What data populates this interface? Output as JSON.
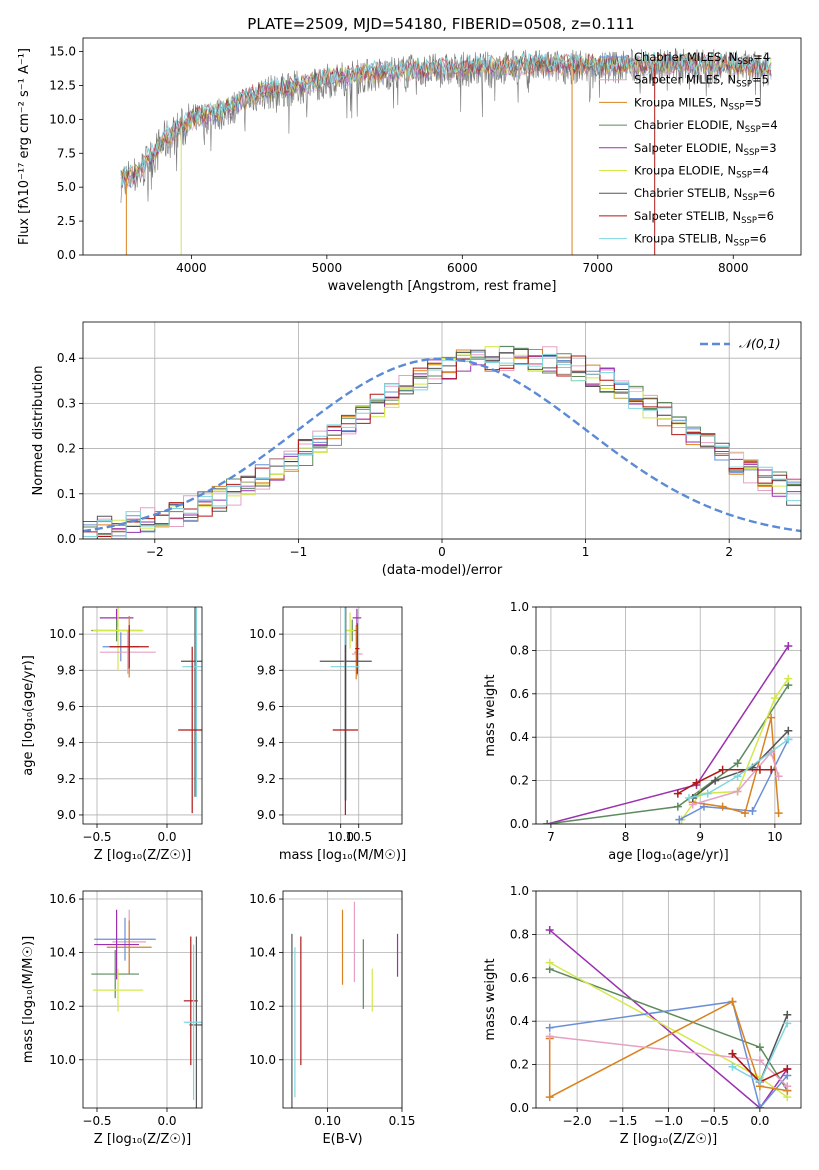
{
  "figure": {
    "title": "PLATE=2509, MJD=54180, FIBERID=0508, z=0.111"
  },
  "colors": {
    "Chabrier MILES": "#6b8fd6",
    "Salpeter MILES": "#e6a0c4",
    "Kroupa MILES": "#d9821f",
    "Chabrier ELODIE": "#5e8a5e",
    "Salpeter ELODIE": "#9b30b0",
    "Kroupa ELODIE": "#d4e84a",
    "Chabrier STELIB": "#555555",
    "Salpeter STELIB": "#b01818",
    "Kroupa STELIB": "#7fd6e0",
    "data": "#777777",
    "normal": "#5b8ad6"
  },
  "chart_data": [
    {
      "id": "spectrum",
      "type": "line",
      "xlabel": "wavelength [Angstrom, rest frame]",
      "ylabel": "Flux [f$_\\lambda$10$^{-17}$ erg cm$^{-2}$ s$^{-1}$ A$^{-1}$]",
      "ylabel_text": "Flux [fλ10⁻¹⁷ erg cm⁻² s⁻¹ A⁻¹]",
      "xlim": [
        3200,
        8500
      ],
      "ylim": [
        0,
        16
      ],
      "xticks": [
        4000,
        5000,
        6000,
        7000,
        8000
      ],
      "yticks": [
        "0.0",
        "2.5",
        "5.0",
        "7.5",
        "10.0",
        "12.5",
        "15.0"
      ],
      "legend_position": "right",
      "legend": [
        {
          "name": "Chabrier MILES",
          "nssp": "4"
        },
        {
          "name": "Salpeter MILES",
          "nssp": "5"
        },
        {
          "name": "Kroupa MILES",
          "nssp": "5"
        },
        {
          "name": "Chabrier ELODIE",
          "nssp": "4"
        },
        {
          "name": "Salpeter ELODIE",
          "nssp": "3"
        },
        {
          "name": "Kroupa ELODIE",
          "nssp": "4"
        },
        {
          "name": "Chabrier STELIB",
          "nssp": "6"
        },
        {
          "name": "Salpeter STELIB",
          "nssp": "6"
        },
        {
          "name": "Kroupa STELIB",
          "nssp": "6"
        }
      ],
      "continuum": {
        "x": [
          3480,
          3600,
          3800,
          4000,
          4200,
          4500,
          4800,
          5000,
          5500,
          6000,
          6500,
          7000,
          7500,
          8000,
          8280
        ],
        "y": [
          5.6,
          6.0,
          8.5,
          10.0,
          10.5,
          12.0,
          12.5,
          13.0,
          13.6,
          13.8,
          14.0,
          14.0,
          14.1,
          14.0,
          13.8
        ]
      },
      "spikes": [
        {
          "x": 3520,
          "y": 0.0
        },
        {
          "x": 3925,
          "y": 0.0
        },
        {
          "x": 6810,
          "y": 0.0
        },
        {
          "x": 7420,
          "y": 0.0
        }
      ]
    },
    {
      "id": "residuals",
      "type": "step",
      "xlabel": "(data-model)/error",
      "ylabel": "Normed distribution",
      "xlim": [
        -2.5,
        2.5
      ],
      "ylim": [
        0,
        0.48
      ],
      "xticks": [
        "−2",
        "−1",
        "0",
        "1",
        "2"
      ],
      "yticks": [
        "0.0",
        "0.1",
        "0.2",
        "0.3",
        "0.4"
      ],
      "legend_position": "top-right",
      "legend_label": "𝒩(0,1)",
      "bin_width": 0.1,
      "bin_start": -2.5,
      "base_density": [
        0.018,
        0.022,
        0.028,
        0.034,
        0.04,
        0.047,
        0.056,
        0.066,
        0.077,
        0.09,
        0.104,
        0.119,
        0.136,
        0.153,
        0.172,
        0.192,
        0.212,
        0.233,
        0.254,
        0.275,
        0.296,
        0.316,
        0.335,
        0.352,
        0.367,
        0.38,
        0.39,
        0.397,
        0.4,
        0.399,
        0.399,
        0.4,
        0.397,
        0.39,
        0.38,
        0.367,
        0.352,
        0.335,
        0.316,
        0.296,
        0.275,
        0.254,
        0.233,
        0.212,
        0.192,
        0.172,
        0.153,
        0.136,
        0.119,
        0.104
      ]
    },
    {
      "id": "age-vs-Z",
      "type": "errorbar",
      "xlabel": "Z [log₁₀(Z/Z☉)]",
      "ylabel": "age  [log₁₀(age/yr)]",
      "xlim": [
        -0.6,
        0.25
      ],
      "ylim": [
        8.95,
        10.15
      ],
      "xticks": [
        "−0.5",
        "0.0"
      ],
      "yticks": [
        "9.0",
        "9.2",
        "9.4",
        "9.6",
        "9.8",
        "10.0"
      ],
      "points": [
        {
          "series": "Salpeter ELODIE",
          "x": -0.36,
          "y": 10.09,
          "xerr": 0.12,
          "yerr": 0.05
        },
        {
          "series": "Chabrier ELODIE",
          "x": -0.36,
          "y": 10.02,
          "xerr": 0.18,
          "yerr": 0.06
        },
        {
          "series": "Kroupa ELODIE",
          "x": -0.35,
          "y": 10.02,
          "xerr": 0.18,
          "yerr": 0.22
        },
        {
          "series": "Chabrier MILES",
          "x": -0.33,
          "y": 9.93,
          "xerr": 0.13,
          "yerr": 0.08
        },
        {
          "series": "Salpeter MILES",
          "x": -0.28,
          "y": 9.9,
          "xerr": 0.2,
          "yerr": 0.12
        },
        {
          "series": "Kroupa MILES",
          "x": -0.27,
          "y": 9.93,
          "xerr": 0.07,
          "yerr": 0.17
        },
        {
          "series": "Salpeter STELIB",
          "x": -0.27,
          "y": 9.93,
          "xerr": 0.14,
          "yerr": 0.12
        },
        {
          "series": "Chabrier STELIB",
          "x": 0.2,
          "y": 9.85,
          "xerr": 0.1,
          "yerr": 0.75
        },
        {
          "series": "Kroupa STELIB",
          "x": 0.21,
          "y": 9.82,
          "xerr": 0.1,
          "yerr": 0.72
        },
        {
          "series": "Salpeter STELIB",
          "x": 0.18,
          "y": 9.47,
          "xerr": 0.1,
          "yerr": 0.46
        }
      ]
    },
    {
      "id": "age-vs-mass",
      "type": "errorbar",
      "xlabel": "mass [log₁₀(M/M☉)]",
      "ylabel": "",
      "xlim": [
        8.4,
        11.7
      ],
      "ylim": [
        8.95,
        10.15
      ],
      "xticks": [
        "10.0",
        "10.5"
      ],
      "xtick_values": [
        10.0,
        10.5
      ],
      "yticks": [
        "9.0",
        "9.2",
        "9.4",
        "9.6",
        "9.8",
        "10.0"
      ],
      "points": [
        {
          "series": "Salpeter ELODIE",
          "x": 10.45,
          "y": 10.09,
          "xerr": 0.12,
          "yerr": 0.05
        },
        {
          "series": "Chabrier ELODIE",
          "x": 10.32,
          "y": 10.02,
          "xerr": 0.15,
          "yerr": 0.06
        },
        {
          "series": "Kroupa ELODIE",
          "x": 10.26,
          "y": 10.02,
          "xerr": 0.12,
          "yerr": 0.1
        },
        {
          "series": "Salpeter MILES",
          "x": 10.46,
          "y": 9.89,
          "xerr": 0.15,
          "yerr": 0.12
        },
        {
          "series": "Kroupa MILES",
          "x": 10.43,
          "y": 9.9,
          "xerr": 0.05,
          "yerr": 0.15
        },
        {
          "series": "Salpeter STELIB",
          "x": 10.46,
          "y": 9.92,
          "xerr": 0.06,
          "yerr": 0.14
        },
        {
          "series": "Chabrier STELIB",
          "x": 10.14,
          "y": 9.85,
          "xerr": 0.72,
          "yerr": 0.77
        },
        {
          "series": "Kroupa STELIB",
          "x": 10.12,
          "y": 9.82,
          "xerr": 0.4,
          "yerr": 0.74
        },
        {
          "series": "Salpeter STELIB",
          "x": 10.13,
          "y": 9.47,
          "xerr": 0.35,
          "yerr": 0.47
        }
      ]
    },
    {
      "id": "weight-vs-age",
      "type": "line",
      "xlabel": "age  [log₁₀(age/yr)]",
      "ylabel": "mass weight",
      "xlim": [
        6.8,
        10.35
      ],
      "ylim": [
        0,
        1.0
      ],
      "xticks": [
        "7",
        "8",
        "9",
        "10"
      ],
      "xtick_values": [
        7,
        8,
        9,
        10
      ],
      "yticks": [
        "0.0",
        "0.2",
        "0.4",
        "0.6",
        "0.8",
        "1.0"
      ],
      "series": [
        {
          "name": "Salpeter ELODIE",
          "x": [
            6.95,
            8.95,
            10.18
          ],
          "y": [
            0.0,
            0.18,
            0.82
          ]
        },
        {
          "name": "Chabrier ELODIE",
          "x": [
            6.95,
            8.7,
            9.5,
            10.18
          ],
          "y": [
            0.0,
            0.08,
            0.28,
            0.64
          ]
        },
        {
          "name": "Kroupa ELODIE",
          "x": [
            8.75,
            9.0,
            9.5,
            10.0,
            10.18
          ],
          "y": [
            0.02,
            0.14,
            0.15,
            0.58,
            0.67
          ]
        },
        {
          "name": "Chabrier MILES",
          "x": [
            8.72,
            9.05,
            9.7,
            10.18
          ],
          "y": [
            0.02,
            0.08,
            0.06,
            0.39
          ]
        },
        {
          "name": "Kroupa MILES",
          "x": [
            8.9,
            9.3,
            9.6,
            9.95,
            10.05
          ],
          "y": [
            0.1,
            0.08,
            0.05,
            0.49,
            0.05
          ]
        },
        {
          "name": "Salpeter MILES",
          "x": [
            8.9,
            9.5,
            9.95,
            10.05
          ],
          "y": [
            0.09,
            0.15,
            0.33,
            0.22
          ]
        },
        {
          "name": "Chabrier STELIB",
          "x": [
            8.9,
            9.2,
            9.7,
            10.18
          ],
          "y": [
            0.12,
            0.2,
            0.26,
            0.43
          ]
        },
        {
          "name": "Salpeter STELIB",
          "x": [
            8.7,
            8.95,
            9.3,
            9.8,
            9.95
          ],
          "y": [
            0.14,
            0.19,
            0.25,
            0.25,
            0.25
          ]
        },
        {
          "name": "Kroupa STELIB",
          "x": [
            8.85,
            9.1,
            9.5,
            10.18
          ],
          "y": [
            0.12,
            0.14,
            0.22,
            0.39
          ]
        }
      ]
    },
    {
      "id": "mass-vs-Z",
      "type": "errorbar",
      "xlabel": "Z [log₁₀(Z/Z☉)]",
      "ylabel": "mass [log₁₀(M/M☉)]",
      "xlim": [
        -0.6,
        0.25
      ],
      "ylim": [
        9.82,
        10.63
      ],
      "xticks": [
        "−0.5",
        "0.0"
      ],
      "yticks": [
        "10.0",
        "10.2",
        "10.4",
        "10.6"
      ],
      "points": [
        {
          "series": "Salpeter MILES",
          "x": -0.27,
          "y": 10.44,
          "xerr": 0.12,
          "yerr": 0.12
        },
        {
          "series": "Kroupa MILES",
          "x": -0.27,
          "y": 10.42,
          "xerr": 0.16,
          "yerr": 0.1
        },
        {
          "series": "Chabrier MILES",
          "x": -0.3,
          "y": 10.45,
          "xerr": 0.22,
          "yerr": 0.08
        },
        {
          "series": "Salpeter ELODIE",
          "x": -0.36,
          "y": 10.43,
          "xerr": 0.16,
          "yerr": 0.13
        },
        {
          "series": "Chabrier ELODIE",
          "x": -0.37,
          "y": 10.32,
          "xerr": 0.17,
          "yerr": 0.09
        },
        {
          "series": "Kroupa ELODIE",
          "x": -0.35,
          "y": 10.26,
          "xerr": 0.18,
          "yerr": 0.08
        },
        {
          "series": "Salpeter STELIB",
          "x": 0.17,
          "y": 10.22,
          "xerr": 0.05,
          "yerr": 0.24
        },
        {
          "series": "Chabrier STELIB",
          "x": 0.21,
          "y": 10.13,
          "xerr": 0.05,
          "yerr": 0.33
        },
        {
          "series": "Kroupa STELIB",
          "x": 0.19,
          "y": 10.14,
          "xerr": 0.07,
          "yerr": 0.29
        }
      ]
    },
    {
      "id": "mass-vs-ebv",
      "type": "errorbar",
      "xlabel": "E(B-V)",
      "ylabel": "",
      "xlim": [
        0.07,
        0.15
      ],
      "ylim": [
        9.82,
        10.63
      ],
      "xticks": [
        "0.10",
        "0.15"
      ],
      "xtick_values": [
        0.1,
        0.15
      ],
      "yticks": [
        "10.0",
        "10.2",
        "10.4",
        "10.6"
      ],
      "points": [
        {
          "series": "Chabrier STELIB",
          "x": 0.076,
          "y": 10.14,
          "xerr": 0,
          "yerr": 0.33
        },
        {
          "series": "Kroupa STELIB",
          "x": 0.078,
          "y": 10.14,
          "xerr": 0,
          "yerr": 0.28
        },
        {
          "series": "Salpeter STELIB",
          "x": 0.082,
          "y": 10.22,
          "xerr": 0,
          "yerr": 0.24
        },
        {
          "series": "Kroupa MILES",
          "x": 0.11,
          "y": 10.42,
          "xerr": 0,
          "yerr": 0.14
        },
        {
          "series": "Salpeter MILES",
          "x": 0.118,
          "y": 10.44,
          "xerr": 0,
          "yerr": 0.15
        },
        {
          "series": "Chabrier ELODIE",
          "x": 0.124,
          "y": 10.32,
          "xerr": 0,
          "yerr": 0.13
        },
        {
          "series": "Kroupa ELODIE",
          "x": 0.13,
          "y": 10.26,
          "xerr": 0,
          "yerr": 0.08
        },
        {
          "series": "Salpeter ELODIE",
          "x": 0.147,
          "y": 10.39,
          "xerr": 0,
          "yerr": 0.08
        }
      ]
    },
    {
      "id": "weight-vs-Z",
      "type": "line",
      "xlabel": "Z [log₁₀(Z/Z☉)]",
      "ylabel": "mass weight",
      "xlim": [
        -2.45,
        0.45
      ],
      "ylim": [
        0,
        1.0
      ],
      "xticks": [
        "−2.0",
        "−1.5",
        "−1.0",
        "−0.5",
        "0.0"
      ],
      "xtick_values": [
        -2.0,
        -1.5,
        -1.0,
        -0.5,
        0.0
      ],
      "yticks": [
        "0.0",
        "0.2",
        "0.4",
        "0.6",
        "0.8",
        "1.0"
      ],
      "series": [
        {
          "name": "Salpeter ELODIE",
          "x": [
            -2.3,
            0.0,
            0.3
          ],
          "y": [
            0.82,
            0.0,
            0.18
          ]
        },
        {
          "name": "Chabrier ELODIE",
          "x": [
            -2.3,
            0.0,
            0.3
          ],
          "y": [
            0.64,
            0.28,
            0.08
          ]
        },
        {
          "name": "Kroupa ELODIE",
          "x": [
            -2.3,
            0.0,
            0.3
          ],
          "y": [
            0.67,
            0.14,
            0.05
          ]
        },
        {
          "name": "Chabrier MILES",
          "x": [
            -2.3,
            -0.3,
            0.0,
            0.3
          ],
          "y": [
            0.37,
            0.49,
            0.0,
            0.15
          ]
        },
        {
          "name": "Kroupa MILES",
          "x": [
            -2.3,
            -2.3,
            -0.3,
            0.0,
            0.3
          ],
          "y": [
            0.32,
            0.05,
            0.49,
            0.1,
            0.08
          ]
        },
        {
          "name": "Salpeter MILES",
          "x": [
            -2.3,
            0.0,
            0.3
          ],
          "y": [
            0.33,
            0.22,
            0.1
          ]
        },
        {
          "name": "Chabrier STELIB",
          "x": [
            -0.3,
            0.0,
            0.3
          ],
          "y": [
            0.25,
            0.12,
            0.43
          ]
        },
        {
          "name": "Salpeter STELIB",
          "x": [
            -0.3,
            0.0,
            0.3
          ],
          "y": [
            0.25,
            0.12,
            0.18
          ]
        },
        {
          "name": "Kroupa STELIB",
          "x": [
            -0.3,
            0.0,
            0.3
          ],
          "y": [
            0.19,
            0.12,
            0.39
          ]
        }
      ]
    }
  ]
}
